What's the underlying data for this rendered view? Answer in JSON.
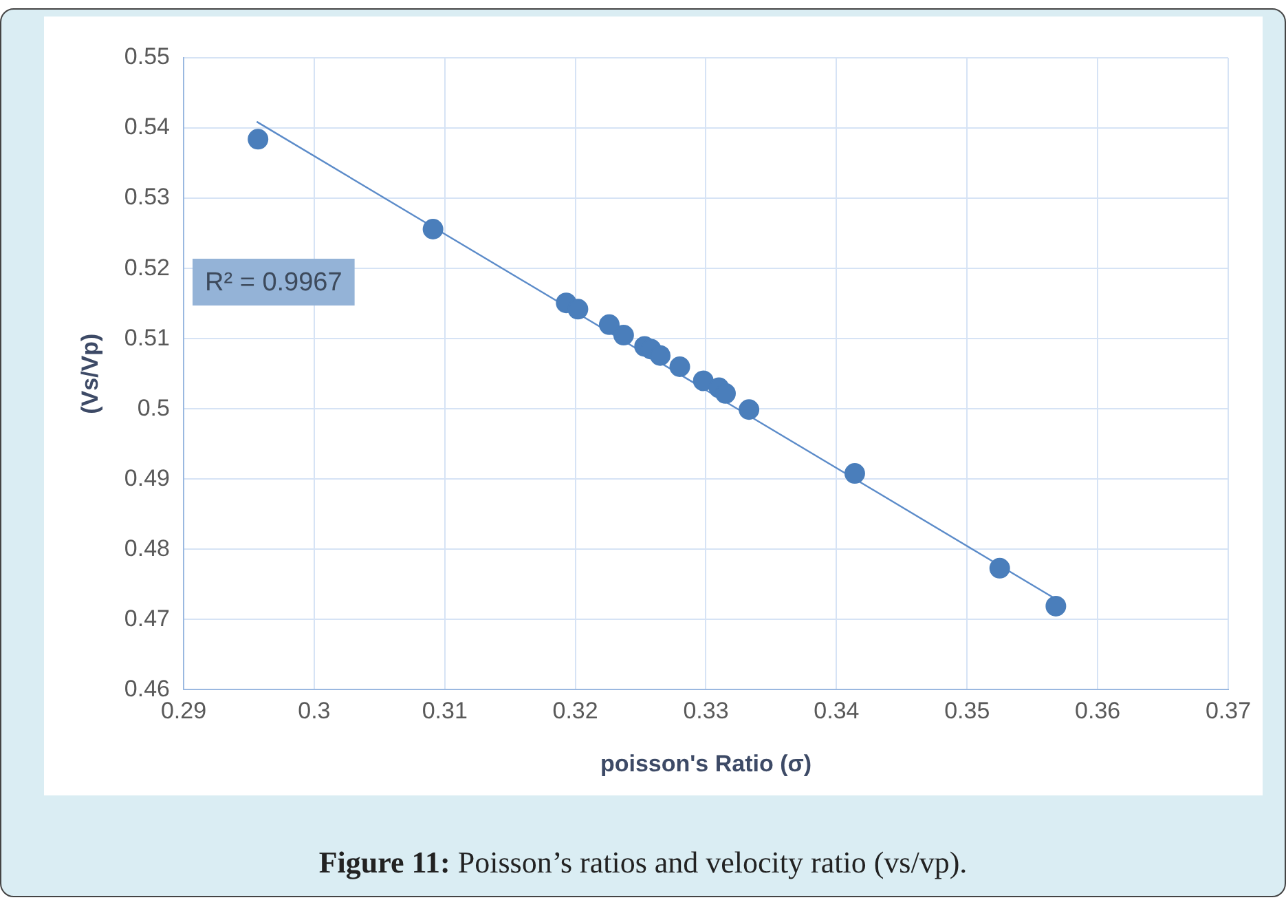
{
  "chart_data": {
    "type": "scatter",
    "xlabel": "poisson's Ratio (σ)",
    "ylabel": "(Vs/Vp)",
    "xlim": [
      0.29,
      0.37
    ],
    "xticks": [
      0.29,
      0.3,
      0.31,
      0.32,
      0.33,
      0.34,
      0.35,
      0.36,
      0.37
    ],
    "ylim": [
      0.46,
      0.55
    ],
    "yticks": [
      0.46,
      0.47,
      0.48,
      0.49,
      0.5,
      0.51,
      0.52,
      0.53,
      0.54,
      0.55
    ],
    "grid": true,
    "legend": false,
    "marker": "circle",
    "series": [
      {
        "color": "#4a7ebb",
        "x": [
          0.2957,
          0.3091,
          0.3193,
          0.3202,
          0.3226,
          0.3237,
          0.3253,
          0.3258,
          0.3265,
          0.328,
          0.3298,
          0.331,
          0.3315,
          0.3333,
          0.3414,
          0.3525,
          0.3568
        ],
        "values": [
          0.5384,
          0.5256,
          0.5151,
          0.5142,
          0.512,
          0.5105,
          0.5089,
          0.5085,
          0.5076,
          0.506,
          0.504,
          0.503,
          0.5022,
          0.4999,
          0.4908,
          0.4773,
          0.4719
        ]
      },
      {
        "type": "line",
        "color": "#5b8bc9",
        "marker": "none",
        "x": [
          0.2956,
          0.3569
        ],
        "values": [
          0.5409,
          0.4728
        ]
      }
    ],
    "annotations": [
      "R² = 0.9967",
      "Figure 11: Poisson’s ratios and velocity ratio (vs/vp)."
    ]
  }
}
